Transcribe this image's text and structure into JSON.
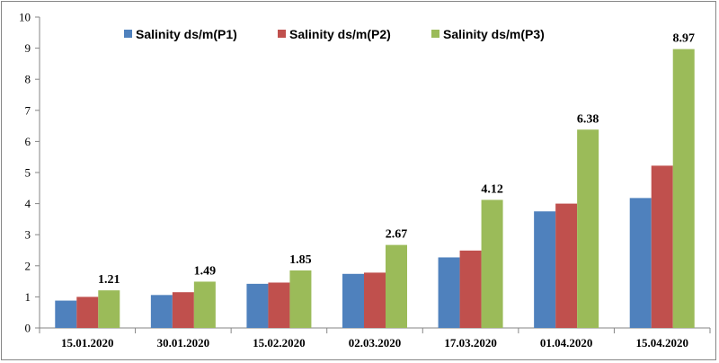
{
  "chart_data": {
    "type": "bar",
    "title": "",
    "xlabel": "",
    "ylabel": "",
    "ylim": [
      0,
      10
    ],
    "yticks": [
      0,
      1,
      2,
      3,
      4,
      5,
      6,
      7,
      8,
      9,
      10
    ],
    "grid": false,
    "legend_position": "top",
    "categories": [
      "15.01.2020",
      "30.01.2020",
      "15.02.2020",
      "02.03.2020",
      "17.03.2020",
      "01.04.2020",
      "15.04.2020"
    ],
    "series": [
      {
        "name": "Salinity ds/m(P1)",
        "color": "#4f81bd",
        "values": [
          0.88,
          1.06,
          1.42,
          1.74,
          2.27,
          3.75,
          4.18
        ]
      },
      {
        "name": "Salinity ds/m(P2)",
        "color": "#c0504d",
        "values": [
          1.0,
          1.15,
          1.46,
          1.78,
          2.49,
          4.0,
          5.22
        ]
      },
      {
        "name": "Salinity ds/m(P3)",
        "color": "#9bbb59",
        "values": [
          1.21,
          1.49,
          1.85,
          2.67,
          4.12,
          6.38,
          8.97
        ]
      }
    ],
    "data_labels": {
      "series_index": 2,
      "labels": [
        "1.21",
        "1.49",
        "1.85",
        "2.67",
        "4.12",
        "6.38",
        "8.97"
      ]
    }
  }
}
